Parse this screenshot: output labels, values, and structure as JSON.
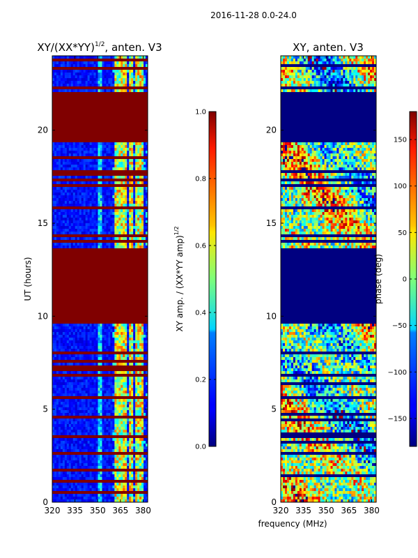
{
  "suptitle": "2016-11-28 0.0-24.0",
  "chart_data": [
    {
      "type": "heatmap",
      "title_main": "XY/(XX*YY)",
      "title_sup": "1/2",
      "title_tail": ", anten. V3",
      "ylabel": "UT (hours)",
      "xlim": [
        320,
        383
      ],
      "ylim": [
        0,
        24
      ],
      "xticks": [
        320,
        335,
        350,
        365,
        380
      ],
      "yticks": [
        0,
        5,
        10,
        15,
        20
      ],
      "colorbar": {
        "label_main": "XY amp. / (XX*YY amp)",
        "label_sup": "1/2",
        "range": [
          0.0,
          1.0
        ],
        "ticks": [
          "0.0",
          "0.2",
          "0.4",
          "0.6",
          "0.8",
          "1.0"
        ],
        "tick_values": [
          0.0,
          0.2,
          0.4,
          0.6,
          0.8,
          1.0
        ]
      },
      "saturated_time_ranges": [
        [
          9.6,
          13.7
        ],
        [
          19.4,
          22.1
        ],
        [
          17.5,
          17.8
        ],
        [
          3.5,
          3.65
        ],
        [
          4.5,
          4.65
        ]
      ],
      "thin_saturated_lines": [
        0.5,
        1.1,
        1.7,
        2.1,
        2.6,
        3.0,
        3.3,
        5.6,
        6.6,
        6.8,
        7.1,
        7.3,
        7.6,
        8.0,
        8.4,
        8.7,
        13.8,
        14.0,
        14.3,
        15.0,
        15.3,
        15.6,
        15.8,
        17.0,
        17.3,
        18.0,
        18.5,
        22.3,
        22.5,
        23.3,
        23.8
      ],
      "bright_channels_mhz": [
        350.5,
        352,
        362.5,
        363.5,
        364.5,
        365.5,
        367,
        369,
        371,
        373,
        375,
        377,
        379
      ]
    },
    {
      "type": "heatmap",
      "title": "XY, anten. V3",
      "xlabel": "frequency (MHz)",
      "xlim": [
        320,
        383
      ],
      "ylim": [
        0,
        24
      ],
      "xticks": [
        320,
        335,
        350,
        365,
        380
      ],
      "yticks": [
        0,
        5,
        10,
        15,
        20
      ],
      "colorbar": {
        "label": "phase (deg)",
        "range": [
          -180,
          180
        ],
        "ticks": [
          "−150",
          "−100",
          "−50",
          "0",
          "50",
          "100",
          "150"
        ],
        "tick_values": [
          -150,
          -100,
          -50,
          0,
          50,
          100,
          150
        ]
      },
      "masked_time_ranges": [
        [
          9.6,
          13.7
        ],
        [
          19.4,
          22.1
        ]
      ],
      "gap_lines": [
        0.9,
        1.4,
        2.1,
        2.6,
        3.2,
        3.5,
        3.7,
        4.4,
        4.7,
        5.6,
        6.0,
        6.4,
        6.8,
        7.2,
        7.5,
        8.0,
        8.4,
        8.7,
        13.8,
        14.0,
        14.3,
        15.0,
        15.3,
        15.8,
        16.5,
        17.0,
        17.3,
        17.8,
        18.0,
        18.6,
        22.3,
        22.5,
        22.8,
        23.5
      ]
    }
  ]
}
